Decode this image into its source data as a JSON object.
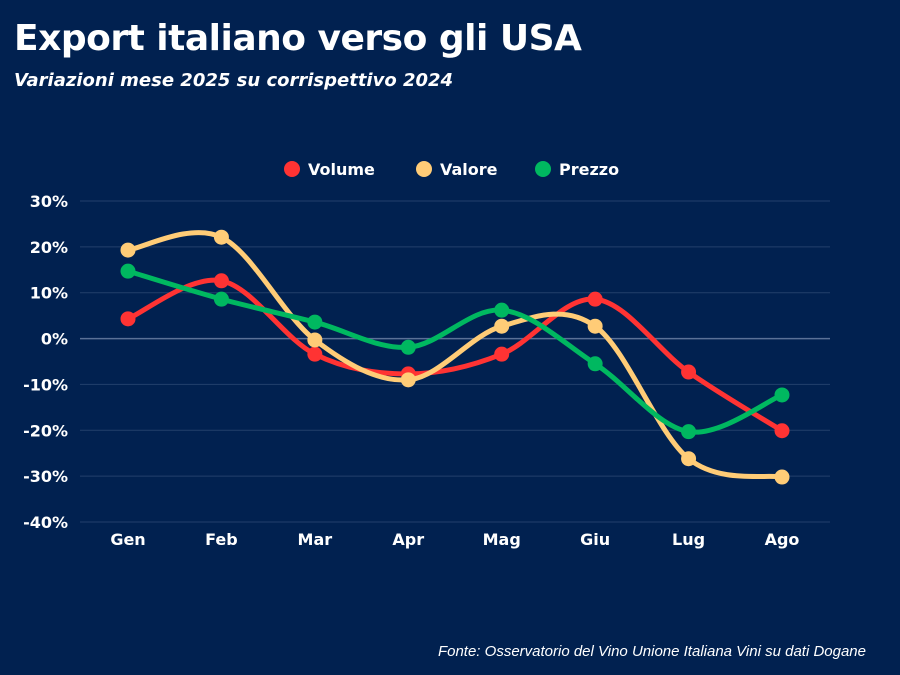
{
  "title": "Export italiano verso gli USA",
  "subtitle": "Variazioni mese 2025 su corrispettivo 2024",
  "source": "Fonte: Osservatorio del Vino Unione Italiana Vini su dati Dogane",
  "background": "#012150",
  "chart_data": {
    "type": "line",
    "smooth": true,
    "categories": [
      "Gen",
      "Feb",
      "Mar",
      "Apr",
      "Mag",
      "Giu",
      "Lug",
      "Ago"
    ],
    "ylim": [
      -40,
      30
    ],
    "yticks": [
      30,
      20,
      10,
      0,
      -10,
      -20,
      -30,
      -40
    ],
    "ytick_labels": [
      "30%",
      "20%",
      "10%",
      "0%",
      "-10%",
      "-20%",
      "-30%",
      "-40%"
    ],
    "grid": true,
    "legend_position": "top-center",
    "series": [
      {
        "name": "Volume",
        "color": "#ff3333",
        "values": [
          4.3,
          12.6,
          -3.4,
          -7.7,
          -3.4,
          8.6,
          -7.3,
          -20.1
        ]
      },
      {
        "name": "Valore",
        "color": "#ffcc77",
        "values": [
          19.3,
          22.1,
          -0.3,
          -9.0,
          2.7,
          2.7,
          -26.2,
          -30.2
        ]
      },
      {
        "name": "Prezzo",
        "color": "#00b860",
        "values": [
          14.7,
          8.6,
          3.6,
          -1.9,
          6.2,
          -5.5,
          -20.3,
          -12.3
        ]
      }
    ]
  }
}
